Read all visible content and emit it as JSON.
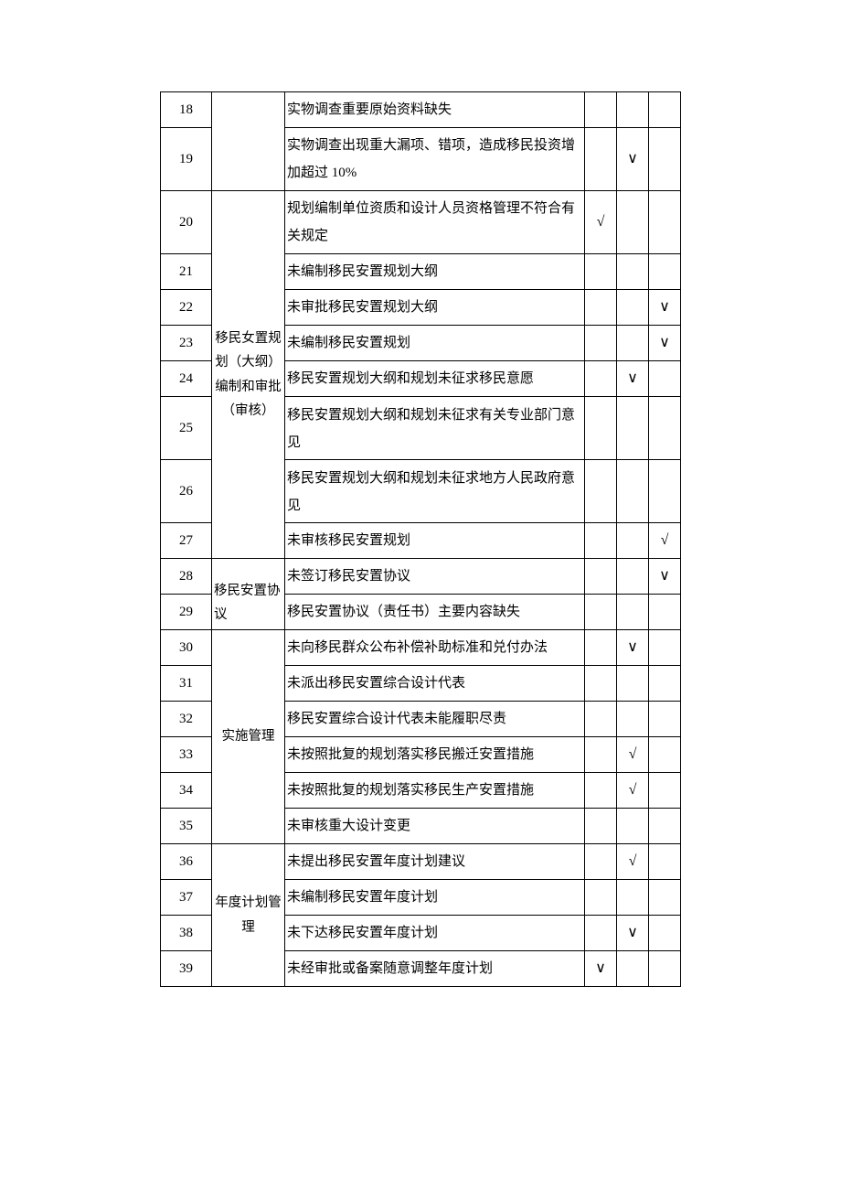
{
  "rows": {
    "r18": {
      "num": "18",
      "desc": "实物调查重要原始资料缺失"
    },
    "r19": {
      "num": "19",
      "desc": "实物调查出现重大漏项、错项，造成移民投资增加超过 10%",
      "m2": "∨"
    },
    "r20": {
      "num": "20",
      "desc": "规划编制单位资质和设计人员资格管理不符合有关规定",
      "m1": "√"
    },
    "r21": {
      "num": "21",
      "desc": "未编制移民安置规划大纲"
    },
    "r22": {
      "num": "22",
      "desc": "未审批移民安置规划大纲",
      "m3": "∨"
    },
    "r23": {
      "num": "23",
      "desc": "未编制移民安置规划",
      "m3": "∨"
    },
    "r24": {
      "num": "24",
      "desc": "移民安置规划大纲和规划未征求移民意愿",
      "m2": "∨"
    },
    "r25": {
      "num": "25",
      "desc": "移民安置规划大纲和规划未征求有关专业部门意见"
    },
    "r26": {
      "num": "26",
      "desc": "移民安置规划大纲和规划未征求地方人民政府意见"
    },
    "r27": {
      "num": "27",
      "desc": "未审核移民安置规划",
      "m3": "√"
    },
    "r28": {
      "num": "28",
      "desc": "未签订移民安置协议",
      "m3": "∨"
    },
    "r29": {
      "num": "29",
      "desc": "移民安置协议（责任书）主要内容缺失"
    },
    "r30": {
      "num": "30",
      "desc": "未向移民群众公布补偿补助标准和兑付办法",
      "m2": "∨"
    },
    "r31": {
      "num": "31",
      "desc": "未派出移民安置综合设计代表"
    },
    "r32": {
      "num": "32",
      "desc": "移民安置综合设计代表未能履职尽责"
    },
    "r33": {
      "num": "33",
      "desc": "未按照批复的规划落实移民搬迁安置措施",
      "m2": "√"
    },
    "r34": {
      "num": "34",
      "desc": "未按照批复的规划落实移民生产安置措施",
      "m2": "√"
    },
    "r35": {
      "num": "35",
      "desc": "未审核重大设计变更"
    },
    "r36": {
      "num": "36",
      "desc": "未提出移民安置年度计划建议",
      "m2": "√"
    },
    "r37": {
      "num": "37",
      "desc": "未编制移民安置年度计划"
    },
    "r38": {
      "num": "38",
      "desc": "未下达移民安置年度计划",
      "m2": "∨"
    },
    "r39": {
      "num": "39",
      "desc": "未经审批或备案随意调整年度计划",
      "m1": "∨"
    }
  },
  "categories": {
    "cat1": "移民女置规划（大纲）编制和审批（审核）",
    "cat2": "移民安置协议",
    "cat3": "实施管理",
    "cat4": "年度计划管理"
  }
}
